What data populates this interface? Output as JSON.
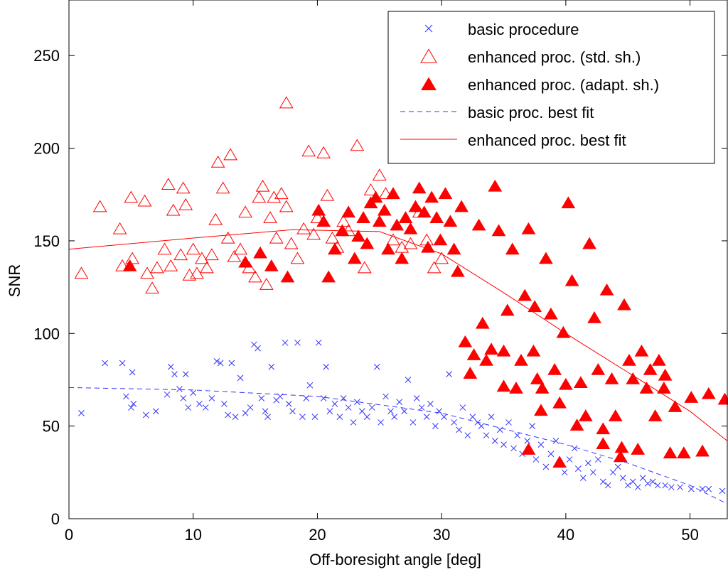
{
  "chart_data": {
    "type": "scatter",
    "title": "",
    "xlabel": "Off-boresight angle   [deg]",
    "ylabel": "SNR",
    "xlim": [
      0,
      53
    ],
    "ylim": [
      0,
      280
    ],
    "x_ticks": [
      0,
      10,
      20,
      30,
      40,
      50
    ],
    "x_tick_labels": [
      "0",
      "10",
      "20",
      "30",
      "40",
      "50"
    ],
    "y_ticks": [
      0,
      50,
      100,
      150,
      200,
      250
    ],
    "y_tick_labels": [
      "0",
      "50",
      "100",
      "150",
      "200",
      "250"
    ],
    "grid": false,
    "legend_position": "top-right",
    "colors": {
      "basic": "#3333ff",
      "enhanced": "#ff0000"
    },
    "series": [
      {
        "name": "basic procedure",
        "marker": "x",
        "points": [
          [
            1.0,
            57
          ],
          [
            2.9,
            84
          ],
          [
            4.3,
            84
          ],
          [
            5.1,
            79
          ],
          [
            4.6,
            66
          ],
          [
            5.2,
            62
          ],
          [
            5.0,
            60
          ],
          [
            6.2,
            56
          ],
          [
            7.0,
            58
          ],
          [
            7.9,
            67
          ],
          [
            8.2,
            82
          ],
          [
            8.5,
            78
          ],
          [
            8.9,
            70
          ],
          [
            9.2,
            65
          ],
          [
            9.4,
            78
          ],
          [
            9.6,
            60
          ],
          [
            10.0,
            68
          ],
          [
            10.5,
            62
          ],
          [
            11.0,
            60
          ],
          [
            11.5,
            65
          ],
          [
            11.9,
            85
          ],
          [
            12.2,
            84
          ],
          [
            12.5,
            62
          ],
          [
            12.8,
            56
          ],
          [
            13.1,
            84
          ],
          [
            13.4,
            55
          ],
          [
            13.8,
            76
          ],
          [
            14.2,
            57
          ],
          [
            14.6,
            60
          ],
          [
            14.9,
            94
          ],
          [
            15.2,
            92
          ],
          [
            15.5,
            65
          ],
          [
            15.8,
            58
          ],
          [
            16.0,
            55
          ],
          [
            16.3,
            82
          ],
          [
            16.7,
            64
          ],
          [
            17.0,
            66
          ],
          [
            17.4,
            95
          ],
          [
            17.7,
            62
          ],
          [
            18.0,
            58
          ],
          [
            18.4,
            95
          ],
          [
            18.8,
            55
          ],
          [
            19.1,
            65
          ],
          [
            19.4,
            72
          ],
          [
            19.8,
            55
          ],
          [
            20.1,
            95
          ],
          [
            20.5,
            65
          ],
          [
            20.7,
            82
          ],
          [
            21.0,
            58
          ],
          [
            21.4,
            62
          ],
          [
            21.8,
            55
          ],
          [
            22.1,
            65
          ],
          [
            22.5,
            60
          ],
          [
            22.9,
            52
          ],
          [
            23.2,
            63
          ],
          [
            23.6,
            58
          ],
          [
            24.0,
            55
          ],
          [
            24.4,
            60
          ],
          [
            24.8,
            82
          ],
          [
            25.1,
            52
          ],
          [
            25.5,
            66
          ],
          [
            25.9,
            58
          ],
          [
            26.2,
            55
          ],
          [
            26.6,
            63
          ],
          [
            27.0,
            58
          ],
          [
            27.3,
            75
          ],
          [
            27.7,
            52
          ],
          [
            28.0,
            65
          ],
          [
            28.4,
            60
          ],
          [
            28.8,
            55
          ],
          [
            29.1,
            62
          ],
          [
            29.5,
            50
          ],
          [
            29.8,
            58
          ],
          [
            30.2,
            55
          ],
          [
            30.6,
            78
          ],
          [
            31.0,
            52
          ],
          [
            31.4,
            48
          ],
          [
            31.7,
            60
          ],
          [
            32.1,
            45
          ],
          [
            32.5,
            55
          ],
          [
            32.9,
            52
          ],
          [
            33.2,
            50
          ],
          [
            33.6,
            45
          ],
          [
            34.0,
            55
          ],
          [
            34.3,
            42
          ],
          [
            34.7,
            48
          ],
          [
            35.0,
            40
          ],
          [
            35.4,
            52
          ],
          [
            35.8,
            38
          ],
          [
            36.1,
            45
          ],
          [
            36.5,
            35
          ],
          [
            36.9,
            42
          ],
          [
            37.3,
            50
          ],
          [
            37.6,
            32
          ],
          [
            38.0,
            40
          ],
          [
            38.4,
            28
          ],
          [
            38.8,
            35
          ],
          [
            39.2,
            42
          ],
          [
            39.5,
            30
          ],
          [
            39.9,
            25
          ],
          [
            40.3,
            32
          ],
          [
            40.7,
            38
          ],
          [
            41.0,
            27
          ],
          [
            41.4,
            22
          ],
          [
            41.8,
            30
          ],
          [
            42.2,
            25
          ],
          [
            42.6,
            32
          ],
          [
            43.0,
            20
          ],
          [
            43.4,
            18
          ],
          [
            43.8,
            25
          ],
          [
            44.2,
            28
          ],
          [
            44.6,
            22
          ],
          [
            45.0,
            18
          ],
          [
            45.4,
            20
          ],
          [
            45.8,
            17
          ],
          [
            46.2,
            22
          ],
          [
            46.6,
            19
          ],
          [
            47.0,
            20
          ],
          [
            47.4,
            18
          ],
          [
            48.0,
            18
          ],
          [
            48.5,
            17
          ],
          [
            49.2,
            17
          ],
          [
            50.1,
            16
          ],
          [
            51.0,
            16
          ],
          [
            51.5,
            16
          ],
          [
            52.6,
            15
          ]
        ]
      },
      {
        "name": "enhanced proc. (std. sh.)",
        "marker": "triangle-open",
        "points": [
          [
            1.0,
            132
          ],
          [
            2.5,
            168
          ],
          [
            4.1,
            156
          ],
          [
            4.3,
            136
          ],
          [
            5.0,
            173
          ],
          [
            5.1,
            140
          ],
          [
            6.1,
            171
          ],
          [
            6.3,
            132
          ],
          [
            6.7,
            124
          ],
          [
            7.1,
            135
          ],
          [
            7.7,
            145
          ],
          [
            8.0,
            180
          ],
          [
            8.2,
            136
          ],
          [
            8.4,
            166
          ],
          [
            9.0,
            142
          ],
          [
            9.2,
            178
          ],
          [
            9.4,
            169
          ],
          [
            9.7,
            131
          ],
          [
            10.0,
            145
          ],
          [
            10.3,
            132
          ],
          [
            10.7,
            140
          ],
          [
            11.1,
            135
          ],
          [
            11.5,
            142
          ],
          [
            11.8,
            161
          ],
          [
            12.0,
            192
          ],
          [
            12.4,
            178
          ],
          [
            12.8,
            151
          ],
          [
            13.0,
            196
          ],
          [
            13.3,
            141
          ],
          [
            13.8,
            145
          ],
          [
            14.2,
            165
          ],
          [
            14.5,
            135
          ],
          [
            15.0,
            130
          ],
          [
            15.3,
            173
          ],
          [
            15.6,
            179
          ],
          [
            15.9,
            126
          ],
          [
            16.2,
            162
          ],
          [
            16.5,
            173
          ],
          [
            16.7,
            151
          ],
          [
            17.1,
            175
          ],
          [
            17.5,
            168
          ],
          [
            17.5,
            224
          ],
          [
            17.9,
            148
          ],
          [
            18.4,
            140
          ],
          [
            18.9,
            156
          ],
          [
            19.3,
            198
          ],
          [
            19.7,
            153
          ],
          [
            20.0,
            162
          ],
          [
            20.5,
            197
          ],
          [
            20.8,
            174
          ],
          [
            21.2,
            151
          ],
          [
            21.6,
            146
          ],
          [
            22.1,
            160
          ],
          [
            22.5,
            155
          ],
          [
            23.2,
            201
          ],
          [
            23.8,
            135
          ],
          [
            24.3,
            177
          ],
          [
            25.0,
            185
          ],
          [
            25.5,
            175
          ],
          [
            26.1,
            150
          ],
          [
            26.8,
            146
          ],
          [
            27.5,
            148
          ],
          [
            28.2,
            165
          ],
          [
            28.8,
            150
          ],
          [
            29.4,
            135
          ],
          [
            30.0,
            140
          ]
        ]
      },
      {
        "name": "enhanced proc. (adapt. sh.)",
        "marker": "triangle-filled",
        "points": [
          [
            4.9,
            136
          ],
          [
            14.2,
            138
          ],
          [
            15.4,
            143
          ],
          [
            16.3,
            136
          ],
          [
            17.6,
            130
          ],
          [
            20.1,
            166
          ],
          [
            20.5,
            160
          ],
          [
            20.9,
            130
          ],
          [
            21.4,
            145
          ],
          [
            22.0,
            155
          ],
          [
            22.5,
            165
          ],
          [
            23.0,
            140
          ],
          [
            23.3,
            152
          ],
          [
            23.7,
            162
          ],
          [
            24.0,
            148
          ],
          [
            24.3,
            170
          ],
          [
            24.7,
            173
          ],
          [
            25.0,
            160
          ],
          [
            25.4,
            166
          ],
          [
            25.7,
            145
          ],
          [
            26.1,
            175
          ],
          [
            26.4,
            158
          ],
          [
            26.8,
            140
          ],
          [
            27.1,
            162
          ],
          [
            27.5,
            156
          ],
          [
            27.9,
            168
          ],
          [
            28.2,
            178
          ],
          [
            28.6,
            165
          ],
          [
            28.9,
            146
          ],
          [
            29.2,
            173
          ],
          [
            29.6,
            162
          ],
          [
            29.9,
            150
          ],
          [
            30.3,
            175
          ],
          [
            30.7,
            160
          ],
          [
            31.0,
            145
          ],
          [
            31.3,
            133
          ],
          [
            31.6,
            168
          ],
          [
            31.9,
            95
          ],
          [
            32.3,
            78
          ],
          [
            32.6,
            88
          ],
          [
            33.0,
            158
          ],
          [
            33.3,
            105
          ],
          [
            33.6,
            85
          ],
          [
            34.0,
            91
          ],
          [
            34.3,
            179
          ],
          [
            34.6,
            155
          ],
          [
            35.0,
            90
          ],
          [
            35.3,
            112
          ],
          [
            35.7,
            145
          ],
          [
            36.0,
            70
          ],
          [
            36.4,
            85
          ],
          [
            36.7,
            120
          ],
          [
            37.0,
            156
          ],
          [
            37.4,
            90
          ],
          [
            37.7,
            75
          ],
          [
            38.1,
            70
          ],
          [
            38.4,
            140
          ],
          [
            38.8,
            110
          ],
          [
            39.1,
            80
          ],
          [
            39.5,
            62
          ],
          [
            39.8,
            100
          ],
          [
            40.2,
            170
          ],
          [
            40.5,
            128
          ],
          [
            40.9,
            50
          ],
          [
            41.2,
            73
          ],
          [
            41.6,
            55
          ],
          [
            41.9,
            148
          ],
          [
            42.3,
            108
          ],
          [
            42.6,
            80
          ],
          [
            43.0,
            40
          ],
          [
            43.3,
            123
          ],
          [
            43.7,
            75
          ],
          [
            44.0,
            55
          ],
          [
            44.4,
            33
          ],
          [
            44.7,
            115
          ],
          [
            45.1,
            85
          ],
          [
            45.4,
            75
          ],
          [
            45.8,
            37
          ],
          [
            46.1,
            90
          ],
          [
            46.5,
            70
          ],
          [
            46.8,
            80
          ],
          [
            47.2,
            55
          ],
          [
            47.5,
            85
          ],
          [
            47.9,
            70
          ],
          [
            48.4,
            35
          ],
          [
            48.8,
            60
          ],
          [
            49.5,
            35
          ],
          [
            50.1,
            65
          ],
          [
            51.0,
            36
          ],
          [
            51.5,
            67
          ],
          [
            52.8,
            64
          ],
          [
            37.0,
            37
          ],
          [
            38.0,
            58
          ],
          [
            39.5,
            30
          ],
          [
            43.0,
            48
          ],
          [
            48.0,
            77
          ],
          [
            35.0,
            71
          ],
          [
            37.5,
            114
          ],
          [
            40.0,
            72
          ],
          [
            44.5,
            38
          ]
        ]
      }
    ],
    "fit_lines": [
      {
        "name": "basic proc. best fit",
        "style": "dashed",
        "points": [
          [
            0,
            70.8
          ],
          [
            10,
            69.5
          ],
          [
            20,
            66.0
          ],
          [
            30,
            57.0
          ],
          [
            40,
            40.0
          ],
          [
            45,
            30.0
          ],
          [
            50,
            18.0
          ],
          [
            53,
            8.0
          ]
        ]
      },
      {
        "name": "enhanced proc. best fit",
        "style": "solid",
        "points": [
          [
            0,
            145.5
          ],
          [
            10,
            151.5
          ],
          [
            18,
            156.0
          ],
          [
            25,
            155.0
          ],
          [
            30,
            143.0
          ],
          [
            35,
            122.0
          ],
          [
            40,
            100.0
          ],
          [
            45,
            79.0
          ],
          [
            50,
            58.0
          ],
          [
            53,
            42.0
          ]
        ]
      }
    ],
    "legend": [
      {
        "label": "basic procedure",
        "symbol": "x"
      },
      {
        "label": "enhanced proc. (std. sh.)",
        "symbol": "triangle-open"
      },
      {
        "label": "enhanced proc. (adapt. sh.)",
        "symbol": "triangle-filled"
      },
      {
        "label": "basic proc. best fit",
        "symbol": "dashed"
      },
      {
        "label": "enhanced proc. best fit",
        "symbol": "solid"
      }
    ]
  }
}
